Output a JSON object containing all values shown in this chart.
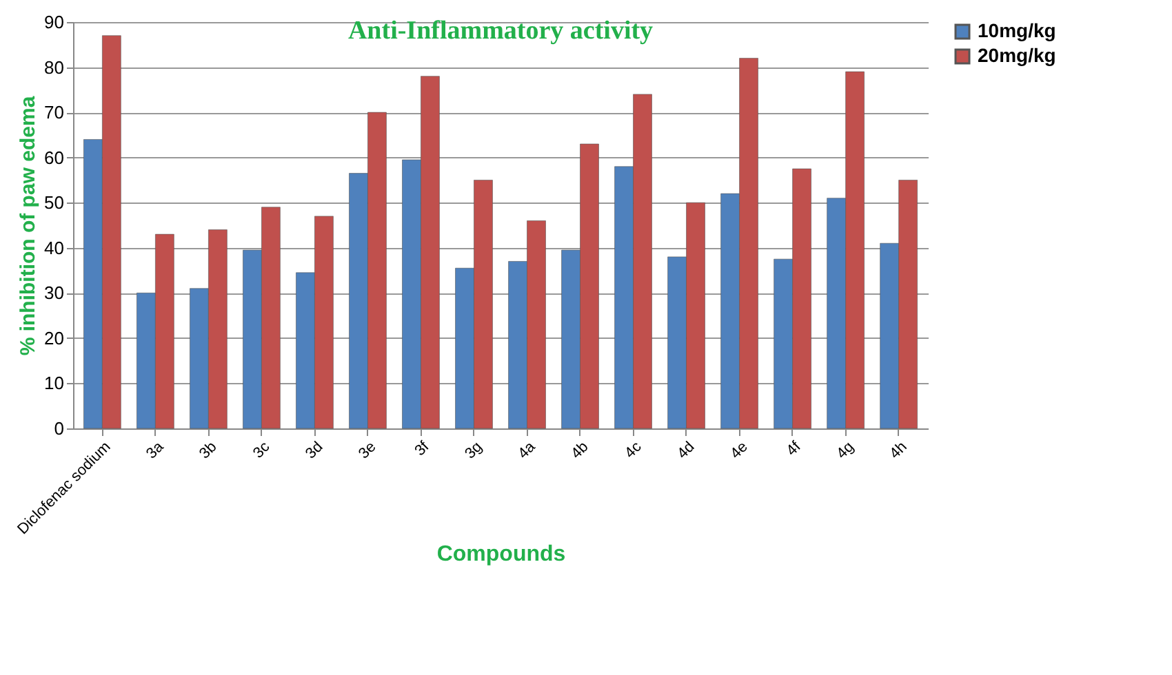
{
  "chart_data": {
    "type": "bar",
    "title": "Anti-Inflammatory activity",
    "xlabel": "Compounds",
    "ylabel": "% inhibition of paw edema",
    "categories": [
      "Diclofenac sodium",
      "3a",
      "3b",
      "3c",
      "3d",
      "3e",
      "3f",
      "3g",
      "4a",
      "4b",
      "4c",
      "4d",
      "4e",
      "4f",
      "4g",
      "4h"
    ],
    "series": [
      {
        "name": "10mg/kg",
        "color": "#4f81bd",
        "values": [
          64,
          30,
          31,
          39.5,
          34.5,
          56.5,
          59.5,
          35.5,
          37,
          39.5,
          58,
          38,
          52,
          37.5,
          51,
          41
        ]
      },
      {
        "name": "20mg/kg",
        "color": "#c0504d",
        "values": [
          87,
          43,
          44,
          49,
          47,
          70,
          78,
          55,
          46,
          63,
          74,
          50,
          82,
          57.5,
          79,
          55
        ]
      }
    ],
    "ylim": [
      0,
      90
    ],
    "yticks": [
      0,
      10,
      20,
      30,
      40,
      50,
      60,
      70,
      80,
      90
    ],
    "grid": "y",
    "legend": "right"
  }
}
